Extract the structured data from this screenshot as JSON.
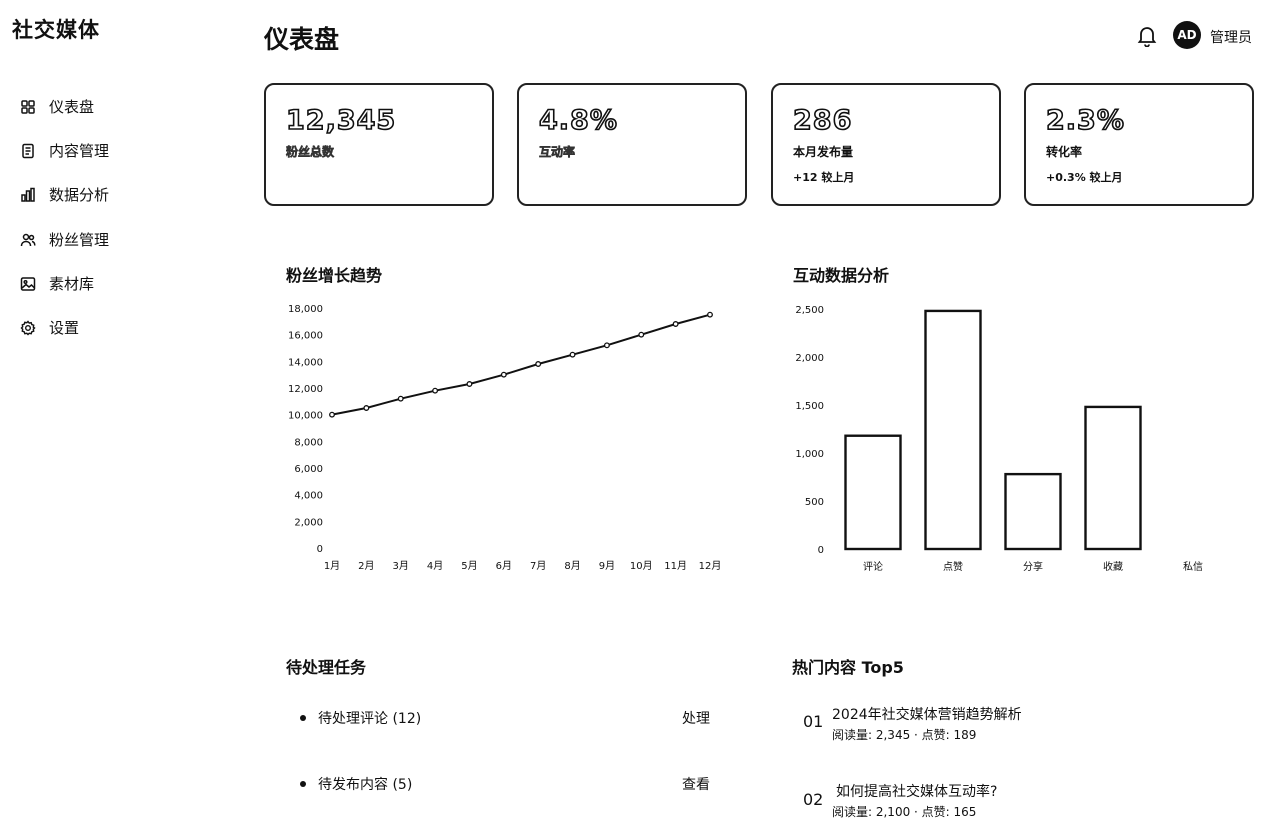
{
  "app": {
    "brand": "社交媒体"
  },
  "sidebar": {
    "items": [
      {
        "label": "仪表盘",
        "icon": "dashboard-icon"
      },
      {
        "label": "内容管理",
        "icon": "content-icon"
      },
      {
        "label": "数据分析",
        "icon": "chart-icon"
      },
      {
        "label": "粉丝管理",
        "icon": "users-icon"
      },
      {
        "label": "素材库",
        "icon": "image-icon"
      },
      {
        "label": "设置",
        "icon": "gear-icon"
      }
    ]
  },
  "header": {
    "title": "仪表盘",
    "user": "管理员",
    "avatar_initials": "AD"
  },
  "stats": [
    {
      "value": "12,345",
      "label": "粉丝总数",
      "change": ""
    },
    {
      "value": "4.8%",
      "label": "互动率",
      "change": ""
    },
    {
      "value": "286",
      "label": "本月发布量",
      "change": "+12 较上月"
    },
    {
      "value": "2.3%",
      "label": "转化率",
      "change": "+0.3% 较上月"
    }
  ],
  "fan_chart_title": "粉丝增长趋势",
  "interaction_chart_title": "互动数据分析",
  "chart_data": [
    {
      "type": "line",
      "title": "粉丝增长趋势",
      "x": [
        "1月",
        "2月",
        "3月",
        "4月",
        "5月",
        "6月",
        "7月",
        "8月",
        "9月",
        "10月",
        "11月",
        "12月"
      ],
      "series": [
        {
          "values": [
            10000,
            10500,
            11200,
            11800,
            12300,
            13000,
            13800,
            14500,
            15200,
            16000,
            16800,
            17500
          ]
        }
      ],
      "yticks": [
        "0",
        "2,000",
        "4,000",
        "6,000",
        "8,000",
        "10,000",
        "12,000",
        "14,000",
        "16,000",
        "18,000"
      ],
      "ylim": [
        0,
        18000
      ],
      "grid": false
    },
    {
      "type": "bar",
      "title": "互动数据分析",
      "categories": [
        "评论",
        "点赞",
        "分享",
        "收藏",
        "私信"
      ],
      "values": [
        1180,
        2480,
        780,
        1480,
        0
      ],
      "yticks": [
        "0",
        "500",
        "1,000",
        "1,500",
        "2,000",
        "2,500"
      ],
      "ylim": [
        0,
        2500
      ],
      "grid": false
    }
  ],
  "tasks": {
    "title": "待处理任务",
    "items": [
      {
        "label": "待处理评论 (12)",
        "action": "处理"
      },
      {
        "label": "待发布内容 (5)",
        "action": "查看"
      }
    ]
  },
  "top_content": {
    "title": "热门内容 Top5",
    "items": [
      {
        "rank": "01",
        "title": "2024年社交媒体营销趋势解析",
        "meta": "阅读量: 2,345 · 点赞: 189"
      },
      {
        "rank": "02",
        "title": "如何提高社交媒体互动率?",
        "meta": "阅读量: 2,100 · 点赞: 165"
      }
    ]
  }
}
